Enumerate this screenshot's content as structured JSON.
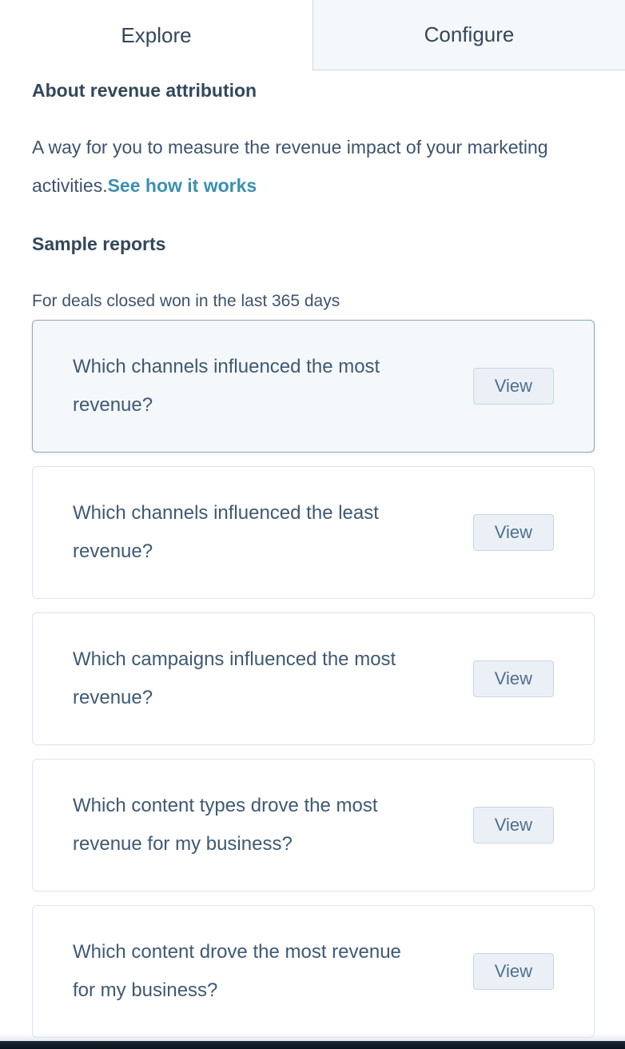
{
  "tabs": [
    {
      "label": "Explore",
      "active": true
    },
    {
      "label": "Configure",
      "active": false
    }
  ],
  "about": {
    "heading": "About revenue attribution",
    "description": "A way for you to measure the revenue impact of your marketing activities.",
    "link_label": "See how it works"
  },
  "sample_reports": {
    "heading": "Sample reports",
    "subtitle": "For deals closed won in the last 365 days",
    "view_label": "View",
    "cards": [
      {
        "question": "Which channels influenced the most revenue?",
        "selected": true
      },
      {
        "question": "Which channels influenced the least revenue?",
        "selected": false
      },
      {
        "question": "Which campaigns influenced the most revenue?",
        "selected": false
      },
      {
        "question": "Which content types drove the most revenue for my business?",
        "selected": false
      },
      {
        "question": "Which content drove the most revenue for my business?",
        "selected": false
      }
    ]
  },
  "colors": {
    "text_primary": "#33475b",
    "text_secondary": "#3d536e",
    "link": "#3a90b0",
    "tab_inactive_bg": "#f5f8fa",
    "tab_border": "#cbd6e2",
    "card_border": "#dde3ed",
    "card_selected_border": "#8fa6bf",
    "card_selected_bg": "#f5f8fa",
    "view_button_bg": "#eaf0f6",
    "view_button_text": "#516f90",
    "bottom_bar": "#0a121c"
  }
}
